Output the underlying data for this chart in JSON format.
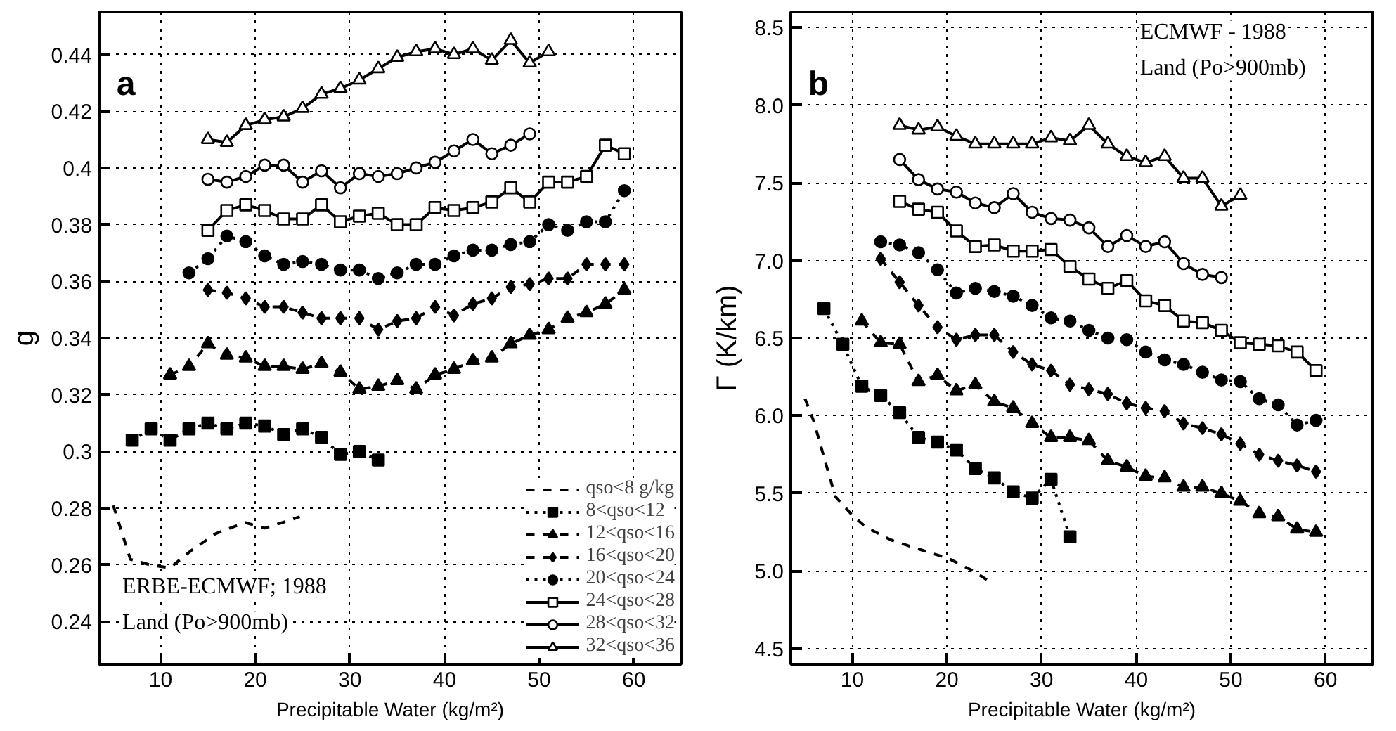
{
  "chart_data": [
    {
      "type": "line",
      "xlabel": "Precipitable Water (kg/m²)",
      "ylabel": "g",
      "xlim": [
        3.5,
        65
      ],
      "ylim": [
        0.225,
        0.455
      ],
      "xticks": [
        10,
        20,
        30,
        40,
        50,
        60
      ],
      "yticks": [
        0.24,
        0.26,
        0.28,
        0.3,
        0.32,
        0.34,
        0.36,
        0.38,
        0.4,
        0.42,
        0.44
      ],
      "grid": true,
      "legend": "bottom right",
      "annotations": [
        "a",
        "ERBE-ECMWF; 1988",
        "Land (Po>900mb)"
      ],
      "series": [
        {
          "name": "qso<8 g/kg",
          "color": "#000000",
          "marker": "none",
          "line_style": "dashed",
          "x": [
            5,
            6.8,
            8.9,
            11,
            13.2,
            15.8,
            18.9,
            21,
            22.9,
            24.7
          ],
          "values": [
            0.281,
            0.262,
            0.26,
            0.259,
            0.265,
            0.271,
            0.275,
            0.273,
            0.275,
            0.277
          ]
        },
        {
          "name": "8<qso<12",
          "color": "#000000",
          "marker": "square",
          "line_style": "dotted",
          "x": [
            7,
            9,
            11,
            13,
            15,
            17,
            19,
            21,
            23,
            25,
            27,
            29,
            31,
            33
          ],
          "values": [
            0.304,
            0.308,
            0.304,
            0.308,
            0.31,
            0.308,
            0.31,
            0.309,
            0.306,
            0.308,
            0.305,
            0.299,
            0.3,
            0.297
          ]
        },
        {
          "name": "12<qso<16",
          "color": "#000000",
          "marker": "triangle",
          "line_style": "dashed",
          "x": [
            11,
            13,
            15,
            17,
            19,
            21,
            23,
            25,
            27,
            29,
            31,
            33,
            35,
            37,
            39,
            41,
            43,
            45,
            47,
            49,
            51,
            53,
            55,
            57,
            59
          ],
          "values": [
            0.327,
            0.33,
            0.338,
            0.334,
            0.333,
            0.33,
            0.33,
            0.329,
            0.331,
            0.328,
            0.322,
            0.323,
            0.325,
            0.322,
            0.327,
            0.329,
            0.332,
            0.333,
            0.338,
            0.341,
            0.343,
            0.347,
            0.349,
            0.352,
            0.357
          ]
        },
        {
          "name": "16<qso<20",
          "color": "#000000",
          "marker": "diamond",
          "line_style": "dashed",
          "x": [
            15,
            17,
            19,
            21,
            23,
            25,
            27,
            29,
            31,
            33,
            35,
            37,
            39,
            41,
            43,
            45,
            47,
            49,
            51,
            53,
            55,
            57,
            59
          ],
          "values": [
            0.357,
            0.356,
            0.354,
            0.351,
            0.351,
            0.349,
            0.347,
            0.347,
            0.347,
            0.343,
            0.346,
            0.347,
            0.351,
            0.348,
            0.352,
            0.354,
            0.358,
            0.359,
            0.361,
            0.361,
            0.366,
            0.366,
            0.366
          ]
        },
        {
          "name": "20<qso<24",
          "color": "#000000",
          "marker": "circle",
          "line_style": "dotted",
          "x": [
            13,
            15,
            17,
            19,
            21,
            23,
            25,
            27,
            29,
            31,
            33,
            35,
            37,
            39,
            41,
            43,
            45,
            47,
            49,
            51,
            53,
            55,
            57,
            59
          ],
          "values": [
            0.363,
            0.368,
            0.376,
            0.374,
            0.369,
            0.366,
            0.367,
            0.366,
            0.364,
            0.364,
            0.361,
            0.363,
            0.366,
            0.366,
            0.369,
            0.371,
            0.371,
            0.373,
            0.374,
            0.38,
            0.378,
            0.381,
            0.381,
            0.392
          ]
        },
        {
          "name": "24<qso<28",
          "color": "#000000",
          "marker": "square",
          "line_style": "solid",
          "x": [
            15,
            17,
            19,
            21,
            23,
            25,
            27,
            29,
            31,
            33,
            35,
            37,
            39,
            41,
            43,
            45,
            47,
            49,
            51,
            53,
            55,
            57,
            59
          ],
          "values": [
            0.378,
            0.385,
            0.387,
            0.385,
            0.382,
            0.382,
            0.387,
            0.381,
            0.383,
            0.384,
            0.38,
            0.38,
            0.386,
            0.385,
            0.386,
            0.388,
            0.393,
            0.388,
            0.395,
            0.395,
            0.397,
            0.408,
            0.405
          ]
        },
        {
          "name": "28<qso<32",
          "color": "#000000",
          "marker": "circle",
          "line_style": "solid",
          "x": [
            15,
            17,
            19,
            21,
            23,
            25,
            27,
            29,
            31,
            33,
            35,
            37,
            39,
            41,
            43,
            45,
            47,
            49
          ],
          "values": [
            0.396,
            0.395,
            0.397,
            0.401,
            0.401,
            0.395,
            0.399,
            0.393,
            0.398,
            0.397,
            0.398,
            0.4,
            0.402,
            0.406,
            0.41,
            0.405,
            0.408,
            0.412
          ]
        },
        {
          "name": "32<qso<36",
          "color": "#000000",
          "marker": "triangle",
          "line_style": "solid",
          "x": [
            15,
            17,
            19,
            21,
            23,
            25,
            27,
            29,
            31,
            33,
            35,
            37,
            39,
            41,
            43,
            45,
            47,
            49,
            51
          ],
          "values": [
            0.41,
            0.409,
            0.415,
            0.417,
            0.418,
            0.421,
            0.426,
            0.428,
            0.431,
            0.435,
            0.439,
            0.441,
            0.442,
            0.44,
            0.442,
            0.438,
            0.445,
            0.437,
            0.441
          ]
        }
      ]
    },
    {
      "type": "line",
      "xlabel": "Precipitable Water (kg/m²)",
      "ylabel": "Γ (K/km)",
      "xlim": [
        3.5,
        65
      ],
      "ylim": [
        4.4,
        8.6
      ],
      "xticks": [
        10,
        20,
        30,
        40,
        50,
        60
      ],
      "yticks": [
        4.5,
        {
          "value": 5,
          "label": "5.0"
        },
        5.5,
        {
          "value": 6,
          "label": "6.0"
        },
        6.5,
        {
          "value": 7,
          "label": "7.0"
        },
        7.5,
        {
          "value": 8,
          "label": "8.0"
        },
        8.5
      ],
      "grid": true,
      "annotations": [
        "b",
        "ECMWF - 1988",
        "Land (Po>900mb)"
      ],
      "series": [
        {
          "color": "#000000",
          "marker": "none",
          "line_style": "dashed",
          "x": [
            5,
            5.9,
            8.2,
            10,
            11.5,
            14.1,
            17.1,
            20.2,
            22.8,
            24.8
          ],
          "values": [
            6.11,
            5.97,
            5.48,
            5.36,
            5.28,
            5.2,
            5.14,
            5.08,
            5.0,
            4.92
          ]
        },
        {
          "color": "#000000",
          "marker": "square",
          "line_style": "dotted",
          "x": [
            7,
            9,
            11,
            13,
            15,
            17,
            19,
            21,
            23,
            25,
            27,
            29,
            31,
            33
          ],
          "values": [
            6.69,
            6.46,
            6.19,
            6.13,
            6.02,
            5.86,
            5.83,
            5.78,
            5.66,
            5.6,
            5.51,
            5.47,
            5.59,
            5.22
          ]
        },
        {
          "color": "#000000",
          "marker": "triangle",
          "line_style": "dashed",
          "x": [
            11,
            13,
            15,
            17,
            19,
            21,
            23,
            25,
            27,
            29,
            31,
            33,
            35,
            37,
            39,
            41,
            43,
            45,
            47,
            49,
            51,
            53,
            55,
            57,
            59
          ],
          "values": [
            6.61,
            6.47,
            6.46,
            6.22,
            6.26,
            6.16,
            6.2,
            6.09,
            6.05,
            5.95,
            5.86,
            5.86,
            5.84,
            5.71,
            5.67,
            5.61,
            5.6,
            5.54,
            5.54,
            5.5,
            5.45,
            5.37,
            5.35,
            5.27,
            5.25
          ]
        },
        {
          "color": "#000000",
          "marker": "diamond",
          "line_style": "dashed",
          "x": [
            13,
            15,
            17,
            19,
            21,
            23,
            25,
            27,
            29,
            31,
            33,
            35,
            37,
            39,
            41,
            43,
            45,
            47,
            49,
            51,
            53,
            55,
            57,
            59
          ],
          "values": [
            7.01,
            6.86,
            6.71,
            6.57,
            6.49,
            6.52,
            6.52,
            6.41,
            6.33,
            6.29,
            6.2,
            6.17,
            6.14,
            6.08,
            6.05,
            6.03,
            5.95,
            5.92,
            5.88,
            5.82,
            5.75,
            5.71,
            5.68,
            5.64
          ]
        },
        {
          "color": "#000000",
          "marker": "circle",
          "line_style": "dotted",
          "x": [
            13,
            15,
            17,
            19,
            21,
            23,
            25,
            27,
            29,
            31,
            33,
            35,
            37,
            39,
            41,
            43,
            45,
            47,
            49,
            51,
            53,
            55,
            57,
            59
          ],
          "values": [
            7.12,
            7.1,
            7.05,
            6.94,
            6.79,
            6.82,
            6.8,
            6.77,
            6.71,
            6.63,
            6.61,
            6.55,
            6.5,
            6.49,
            6.41,
            6.36,
            6.33,
            6.28,
            6.23,
            6.22,
            6.11,
            6.07,
            5.94,
            5.97
          ]
        },
        {
          "color": "#000000",
          "marker": "square",
          "line_style": "solid",
          "x": [
            15,
            17,
            19,
            21,
            23,
            25,
            27,
            29,
            31,
            33,
            35,
            37,
            39,
            41,
            43,
            45,
            47,
            49,
            51,
            53,
            55,
            57,
            59
          ],
          "values": [
            7.38,
            7.33,
            7.31,
            7.19,
            7.09,
            7.1,
            7.06,
            7.06,
            7.07,
            6.96,
            6.88,
            6.82,
            6.87,
            6.74,
            6.71,
            6.61,
            6.6,
            6.55,
            6.47,
            6.46,
            6.45,
            6.41,
            6.29
          ]
        },
        {
          "color": "#000000",
          "marker": "circle",
          "line_style": "solid",
          "x": [
            15,
            17,
            19,
            21,
            23,
            25,
            27,
            29,
            31,
            33,
            35,
            37,
            39,
            41,
            43,
            45,
            47,
            49
          ],
          "values": [
            7.65,
            7.52,
            7.46,
            7.44,
            7.37,
            7.34,
            7.43,
            7.31,
            7.27,
            7.26,
            7.21,
            7.09,
            7.16,
            7.09,
            7.12,
            6.98,
            6.91,
            6.89
          ]
        },
        {
          "color": "#000000",
          "marker": "triangle",
          "line_style": "solid",
          "x": [
            15,
            17,
            19,
            21,
            23,
            25,
            27,
            29,
            31,
            33,
            35,
            37,
            39,
            41,
            43,
            45,
            47,
            49,
            51
          ],
          "values": [
            7.87,
            7.84,
            7.86,
            7.8,
            7.75,
            7.75,
            7.75,
            7.75,
            7.79,
            7.77,
            7.87,
            7.75,
            7.67,
            7.63,
            7.67,
            7.53,
            7.53,
            7.35,
            7.42
          ]
        }
      ]
    }
  ]
}
